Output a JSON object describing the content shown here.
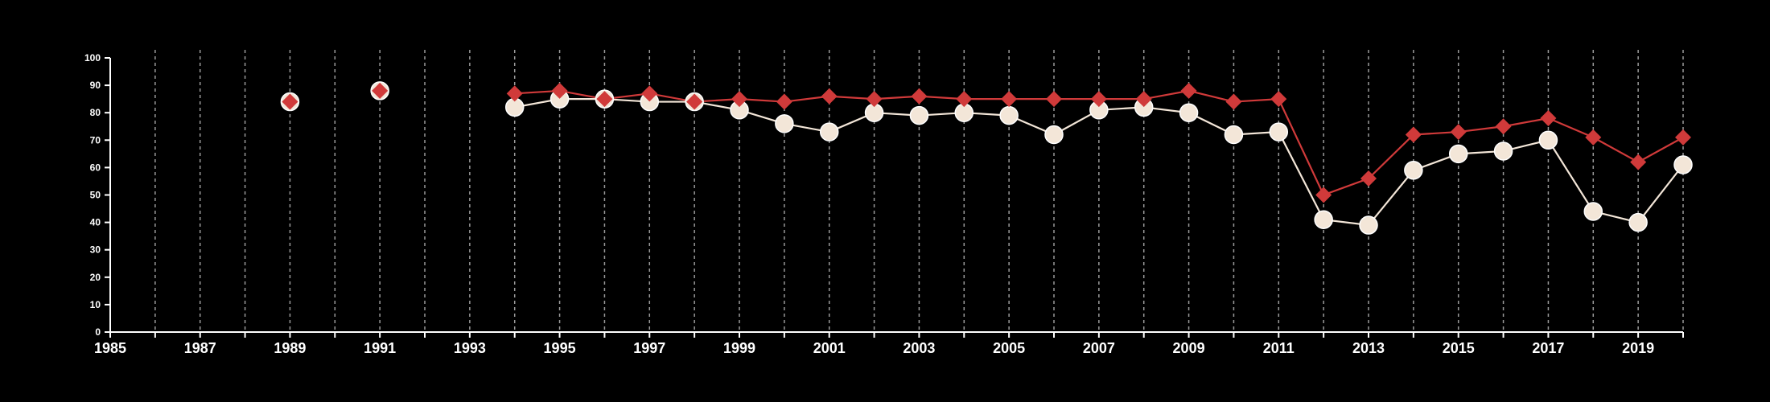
{
  "chart_data": {
    "type": "line",
    "title": "",
    "xlabel": "",
    "ylabel": "",
    "xlim": [
      1985,
      2020
    ],
    "ylim": [
      0,
      100
    ],
    "grid": {
      "vertical": true,
      "horizontal": false,
      "style": "dashed"
    },
    "x_tick_labels": [
      "1985",
      "1987",
      "1989",
      "1991",
      "1993",
      "1995",
      "1997",
      "1999",
      "2001",
      "2003",
      "2005",
      "2007",
      "2009",
      "2011",
      "2013",
      "2015",
      "2017",
      "2019"
    ],
    "y_tick_labels": [
      "0",
      "10",
      "20",
      "30",
      "40",
      "50",
      "60",
      "70",
      "80",
      "90",
      "100"
    ],
    "series": [
      {
        "marker": "circle",
        "color": "#f3e6d8",
        "points": [
          [
            1989,
            84
          ],
          [
            1991,
            88
          ],
          [
            1994,
            82
          ],
          [
            1995,
            85
          ],
          [
            1996,
            85
          ],
          [
            1997,
            84
          ],
          [
            1998,
            84
          ],
          [
            1999,
            81
          ],
          [
            2000,
            76
          ],
          [
            2001,
            73
          ],
          [
            2002,
            80
          ],
          [
            2003,
            79
          ],
          [
            2004,
            80
          ],
          [
            2005,
            79
          ],
          [
            2006,
            72
          ],
          [
            2007,
            81
          ],
          [
            2008,
            82
          ],
          [
            2009,
            80
          ],
          [
            2010,
            72
          ],
          [
            2011,
            73
          ],
          [
            2012,
            41
          ],
          [
            2013,
            39
          ],
          [
            2014,
            59
          ],
          [
            2015,
            65
          ],
          [
            2016,
            66
          ],
          [
            2017,
            70
          ],
          [
            2018,
            44
          ],
          [
            2019,
            40
          ],
          [
            2020,
            61
          ]
        ]
      },
      {
        "marker": "diamond",
        "color": "#d03a3a",
        "points": [
          [
            1989,
            84
          ],
          [
            1991,
            88
          ],
          [
            1994,
            87
          ],
          [
            1995,
            88
          ],
          [
            1996,
            85
          ],
          [
            1997,
            87
          ],
          [
            1998,
            84
          ],
          [
            1999,
            85
          ],
          [
            2000,
            84
          ],
          [
            2001,
            86
          ],
          [
            2002,
            85
          ],
          [
            2003,
            86
          ],
          [
            2004,
            85
          ],
          [
            2005,
            85
          ],
          [
            2006,
            85
          ],
          [
            2007,
            85
          ],
          [
            2008,
            85
          ],
          [
            2009,
            88
          ],
          [
            2010,
            84
          ],
          [
            2011,
            85
          ],
          [
            2012,
            50
          ],
          [
            2013,
            56
          ],
          [
            2014,
            72
          ],
          [
            2015,
            73
          ],
          [
            2016,
            75
          ],
          [
            2017,
            78
          ],
          [
            2018,
            71
          ],
          [
            2019,
            62
          ],
          [
            2020,
            71
          ]
        ]
      }
    ]
  },
  "colors": {
    "background": "#000000",
    "axis": "#ffffff",
    "grid": "#9a9a9a"
  }
}
